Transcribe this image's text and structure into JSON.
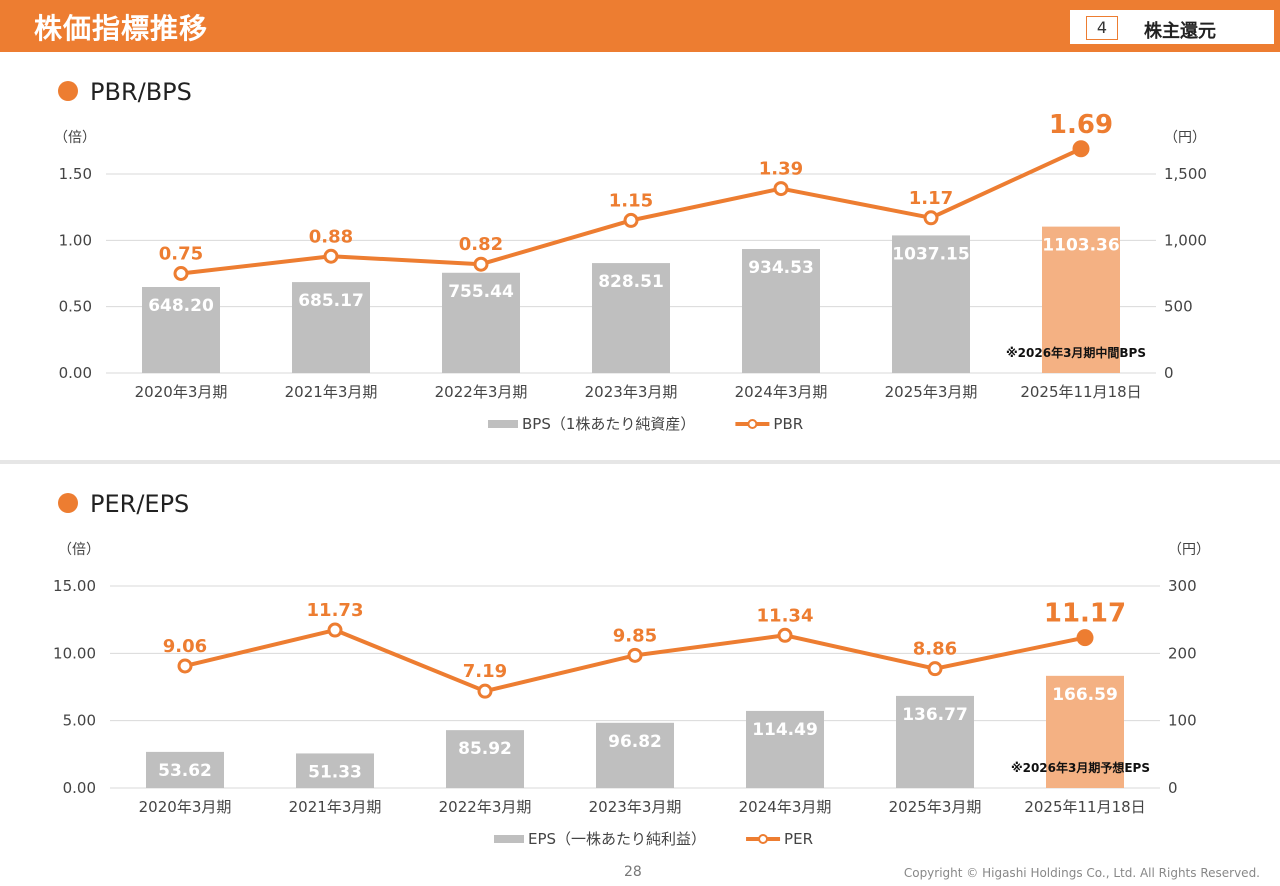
{
  "header": {
    "title": "株価指標推移",
    "section_number": "4",
    "section_label": "株主還元"
  },
  "footer": {
    "page": "28",
    "copyright": "Copyright © Higashi Holdings Co., Ltd. All Rights Reserved."
  },
  "colors": {
    "accent": "#ED7D31",
    "bar": "#BFBFBF",
    "bar_highlight": "#F4B183",
    "grid": "#D9D9D9"
  },
  "chart_data": [
    {
      "type": "bar+line",
      "title": "PBR/BPS",
      "left_axis_unit": "（倍）",
      "right_axis_unit": "（円）",
      "categories": [
        "2020年3月期",
        "2021年3月期",
        "2022年3月期",
        "2023年3月期",
        "2024年3月期",
        "2025年3月期",
        "2025年11月18日"
      ],
      "series": [
        {
          "name": "BPS(1株あたり純資産)",
          "kind": "bar",
          "axis": "right",
          "values": [
            648.2,
            685.17,
            755.44,
            828.51,
            934.53,
            1037.15,
            1103.36
          ],
          "labels": [
            "648.20",
            "685.17",
            "755.44",
            "828.51",
            "934.53",
            "1037.15",
            "1103.36"
          ]
        },
        {
          "name": "PBR",
          "kind": "line",
          "axis": "left",
          "values": [
            0.75,
            0.88,
            0.82,
            1.15,
            1.39,
            1.17,
            1.69
          ],
          "labels": [
            "0.75",
            "0.88",
            "0.82",
            "1.15",
            "1.39",
            "1.17",
            "1.69"
          ]
        }
      ],
      "left_ylim": [
        0,
        1.5
      ],
      "left_ticks": [
        "0.00",
        "0.50",
        "1.00",
        "1.50"
      ],
      "right_ylim": [
        0,
        1500
      ],
      "right_ticks": [
        "0",
        "500",
        "1,000",
        "1,500"
      ],
      "annotation": "※2026年3月期中間BPS",
      "highlight_last": true,
      "legend": [
        "BPS（1株あたり純資産）",
        "PBR"
      ]
    },
    {
      "type": "bar+line",
      "title": "PER/EPS",
      "left_axis_unit": "（倍）",
      "right_axis_unit": "（円）",
      "categories": [
        "2020年3月期",
        "2021年3月期",
        "2022年3月期",
        "2023年3月期",
        "2024年3月期",
        "2025年3月期",
        "2025年11月18日"
      ],
      "series": [
        {
          "name": "EPS(一株あたり純利益)",
          "kind": "bar",
          "axis": "right",
          "values": [
            53.62,
            51.33,
            85.92,
            96.82,
            114.49,
            136.77,
            166.59
          ],
          "labels": [
            "53.62",
            "51.33",
            "85.92",
            "96.82",
            "114.49",
            "136.77",
            "166.59"
          ]
        },
        {
          "name": "PER",
          "kind": "line",
          "axis": "left",
          "values": [
            9.06,
            11.73,
            7.19,
            9.85,
            11.34,
            8.86,
            11.17
          ],
          "labels": [
            "9.06",
            "11.73",
            "7.19",
            "9.85",
            "11.34",
            "8.86",
            "11.17"
          ]
        }
      ],
      "left_ylim": [
        0,
        15
      ],
      "left_ticks": [
        "0.00",
        "5.00",
        "10.00",
        "15.00"
      ],
      "right_ylim": [
        0,
        300
      ],
      "right_ticks": [
        "0",
        "100",
        "200",
        "300"
      ],
      "annotation": "※2026年3月期予想EPS",
      "highlight_last": true,
      "legend": [
        "EPS（一株あたり純利益）",
        "PER"
      ]
    }
  ]
}
